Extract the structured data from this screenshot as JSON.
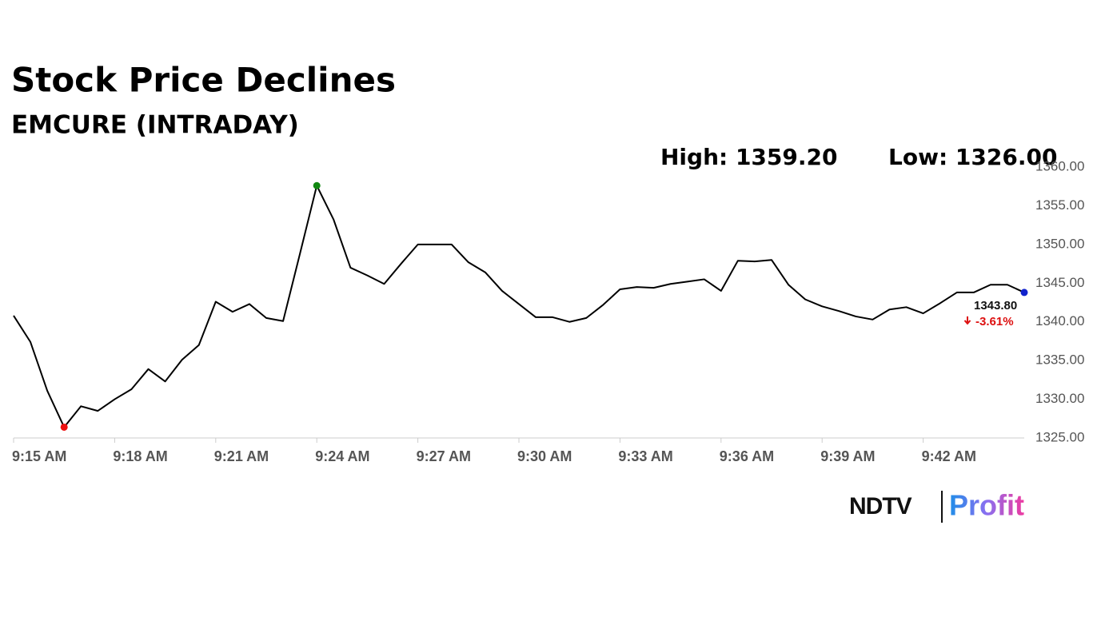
{
  "chart_data": {
    "type": "line",
    "title": "Stock Price Declines",
    "subtitle": "EMCURE (INTRADAY)",
    "high_text": "High: 1359.20",
    "low_text": "Low: 1326.00",
    "last_label": "1343.80",
    "change_label": "-3.61%",
    "brand": {
      "left": "NDTV",
      "right": "Profit"
    },
    "color": "#000000",
    "min_color": "#ee1111",
    "max_color": "#118811",
    "last_color": "#1122cc",
    "change_color": "#dd1111",
    "grid": false,
    "xlim": [
      0,
      60
    ],
    "xticks": [
      {
        "value": 0,
        "label": "9:15 AM"
      },
      {
        "value": 6,
        "label": "9:18 AM"
      },
      {
        "value": 12,
        "label": "9:21 AM"
      },
      {
        "value": 18,
        "label": "9:24 AM"
      },
      {
        "value": 24,
        "label": "9:27 AM"
      },
      {
        "value": 30,
        "label": "9:30 AM"
      },
      {
        "value": 36,
        "label": "9:33 AM"
      },
      {
        "value": 42,
        "label": "9:36 AM"
      },
      {
        "value": 48,
        "label": "9:39 AM"
      },
      {
        "value": 54,
        "label": "9:42 AM"
      }
    ],
    "ylim": [
      1325,
      1360
    ],
    "yticks": [
      {
        "value": 1325,
        "label": "1325.00"
      },
      {
        "value": 1330,
        "label": "1330.00"
      },
      {
        "value": 1335,
        "label": "1335.00"
      },
      {
        "value": 1340,
        "label": "1340.00"
      },
      {
        "value": 1345,
        "label": "1345.00"
      },
      {
        "value": 1350,
        "label": "1350.00"
      },
      {
        "value": 1355,
        "label": "1355.00"
      },
      {
        "value": 1360,
        "label": "1360.00"
      }
    ],
    "values": [
      1340.8,
      1337.4,
      1331.1,
      1326.4,
      1329.1,
      1328.5,
      1330.0,
      1331.3,
      1333.9,
      1332.3,
      1335.1,
      1337.0,
      1342.6,
      1341.3,
      1342.3,
      1340.5,
      1340.1,
      1348.8,
      1357.6,
      1353.2,
      1347.0,
      1346.0,
      1344.9,
      1347.5,
      1350.0,
      1350.0,
      1350.0,
      1347.7,
      1346.4,
      1344.0,
      1342.3,
      1340.6,
      1340.6,
      1340.0,
      1340.5,
      1342.2,
      1344.2,
      1344.5,
      1344.4,
      1344.9,
      1345.2,
      1345.5,
      1344.0,
      1347.9,
      1347.8,
      1348.0,
      1344.8,
      1342.9,
      1342.0,
      1341.4,
      1340.7,
      1340.3,
      1341.6,
      1341.9,
      1341.1,
      1342.4,
      1343.8,
      1343.8,
      1344.8,
      1344.8,
      1343.8
    ]
  }
}
